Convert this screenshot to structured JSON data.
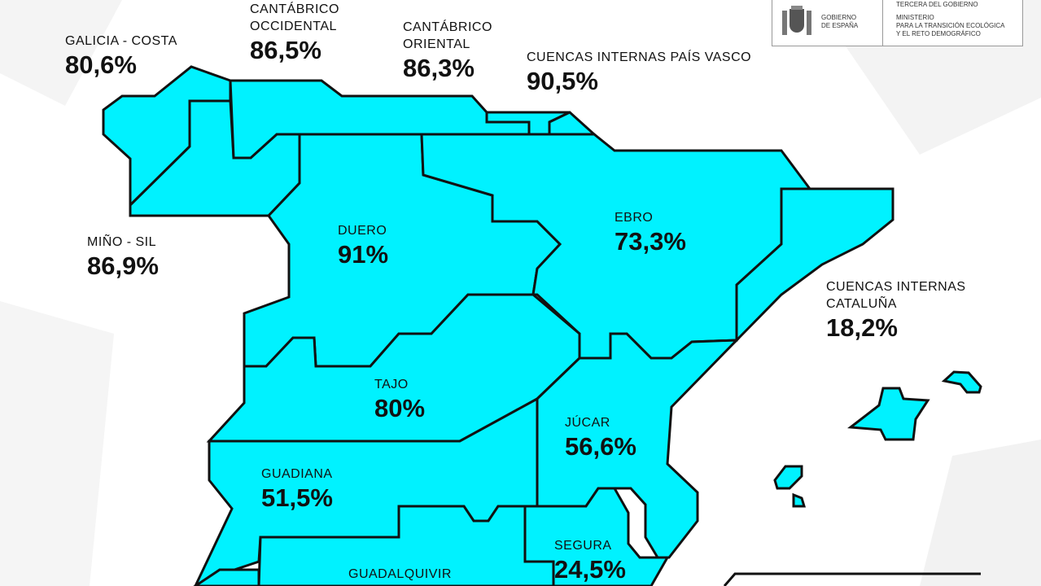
{
  "colors": {
    "region_fill": "#00f2ff",
    "border": "#111111"
  },
  "logo": {
    "gov": "GOBIERNO\nDE ESPAÑA",
    "top": "TERCERA DEL GOBIERNO",
    "ministry": "MINISTERIO\nPARA LA TRANSICIÓN ECOLÓGICA\nY EL RETO DEMOGRÁFICO"
  },
  "basins": [
    {
      "name": "GALICIA - COSTA",
      "value": "80,6%"
    },
    {
      "name": "CANTÁBRICO\nOCCIDENTAL",
      "value": "86,5%"
    },
    {
      "name": "CANTÁBRICO\nORIENTAL",
      "value": "86,3%"
    },
    {
      "name": "CUENCAS INTERNAS PAÍS VASCO",
      "value": "90,5%"
    },
    {
      "name": "MIÑO - SIL",
      "value": "86,9%"
    },
    {
      "name": "DUERO",
      "value": "91%"
    },
    {
      "name": "EBRO",
      "value": "73,3%"
    },
    {
      "name": "CUENCAS INTERNAS\nCATALUÑA",
      "value": "18,2%"
    },
    {
      "name": "TAJO",
      "value": "80%"
    },
    {
      "name": "JÚCAR",
      "value": "56,6%"
    },
    {
      "name": "GUADIANA",
      "value": "51,5%"
    },
    {
      "name": "SEGURA",
      "value": "24,5%"
    },
    {
      "name": "GUADALQUIVIR",
      "value": ""
    }
  ]
}
